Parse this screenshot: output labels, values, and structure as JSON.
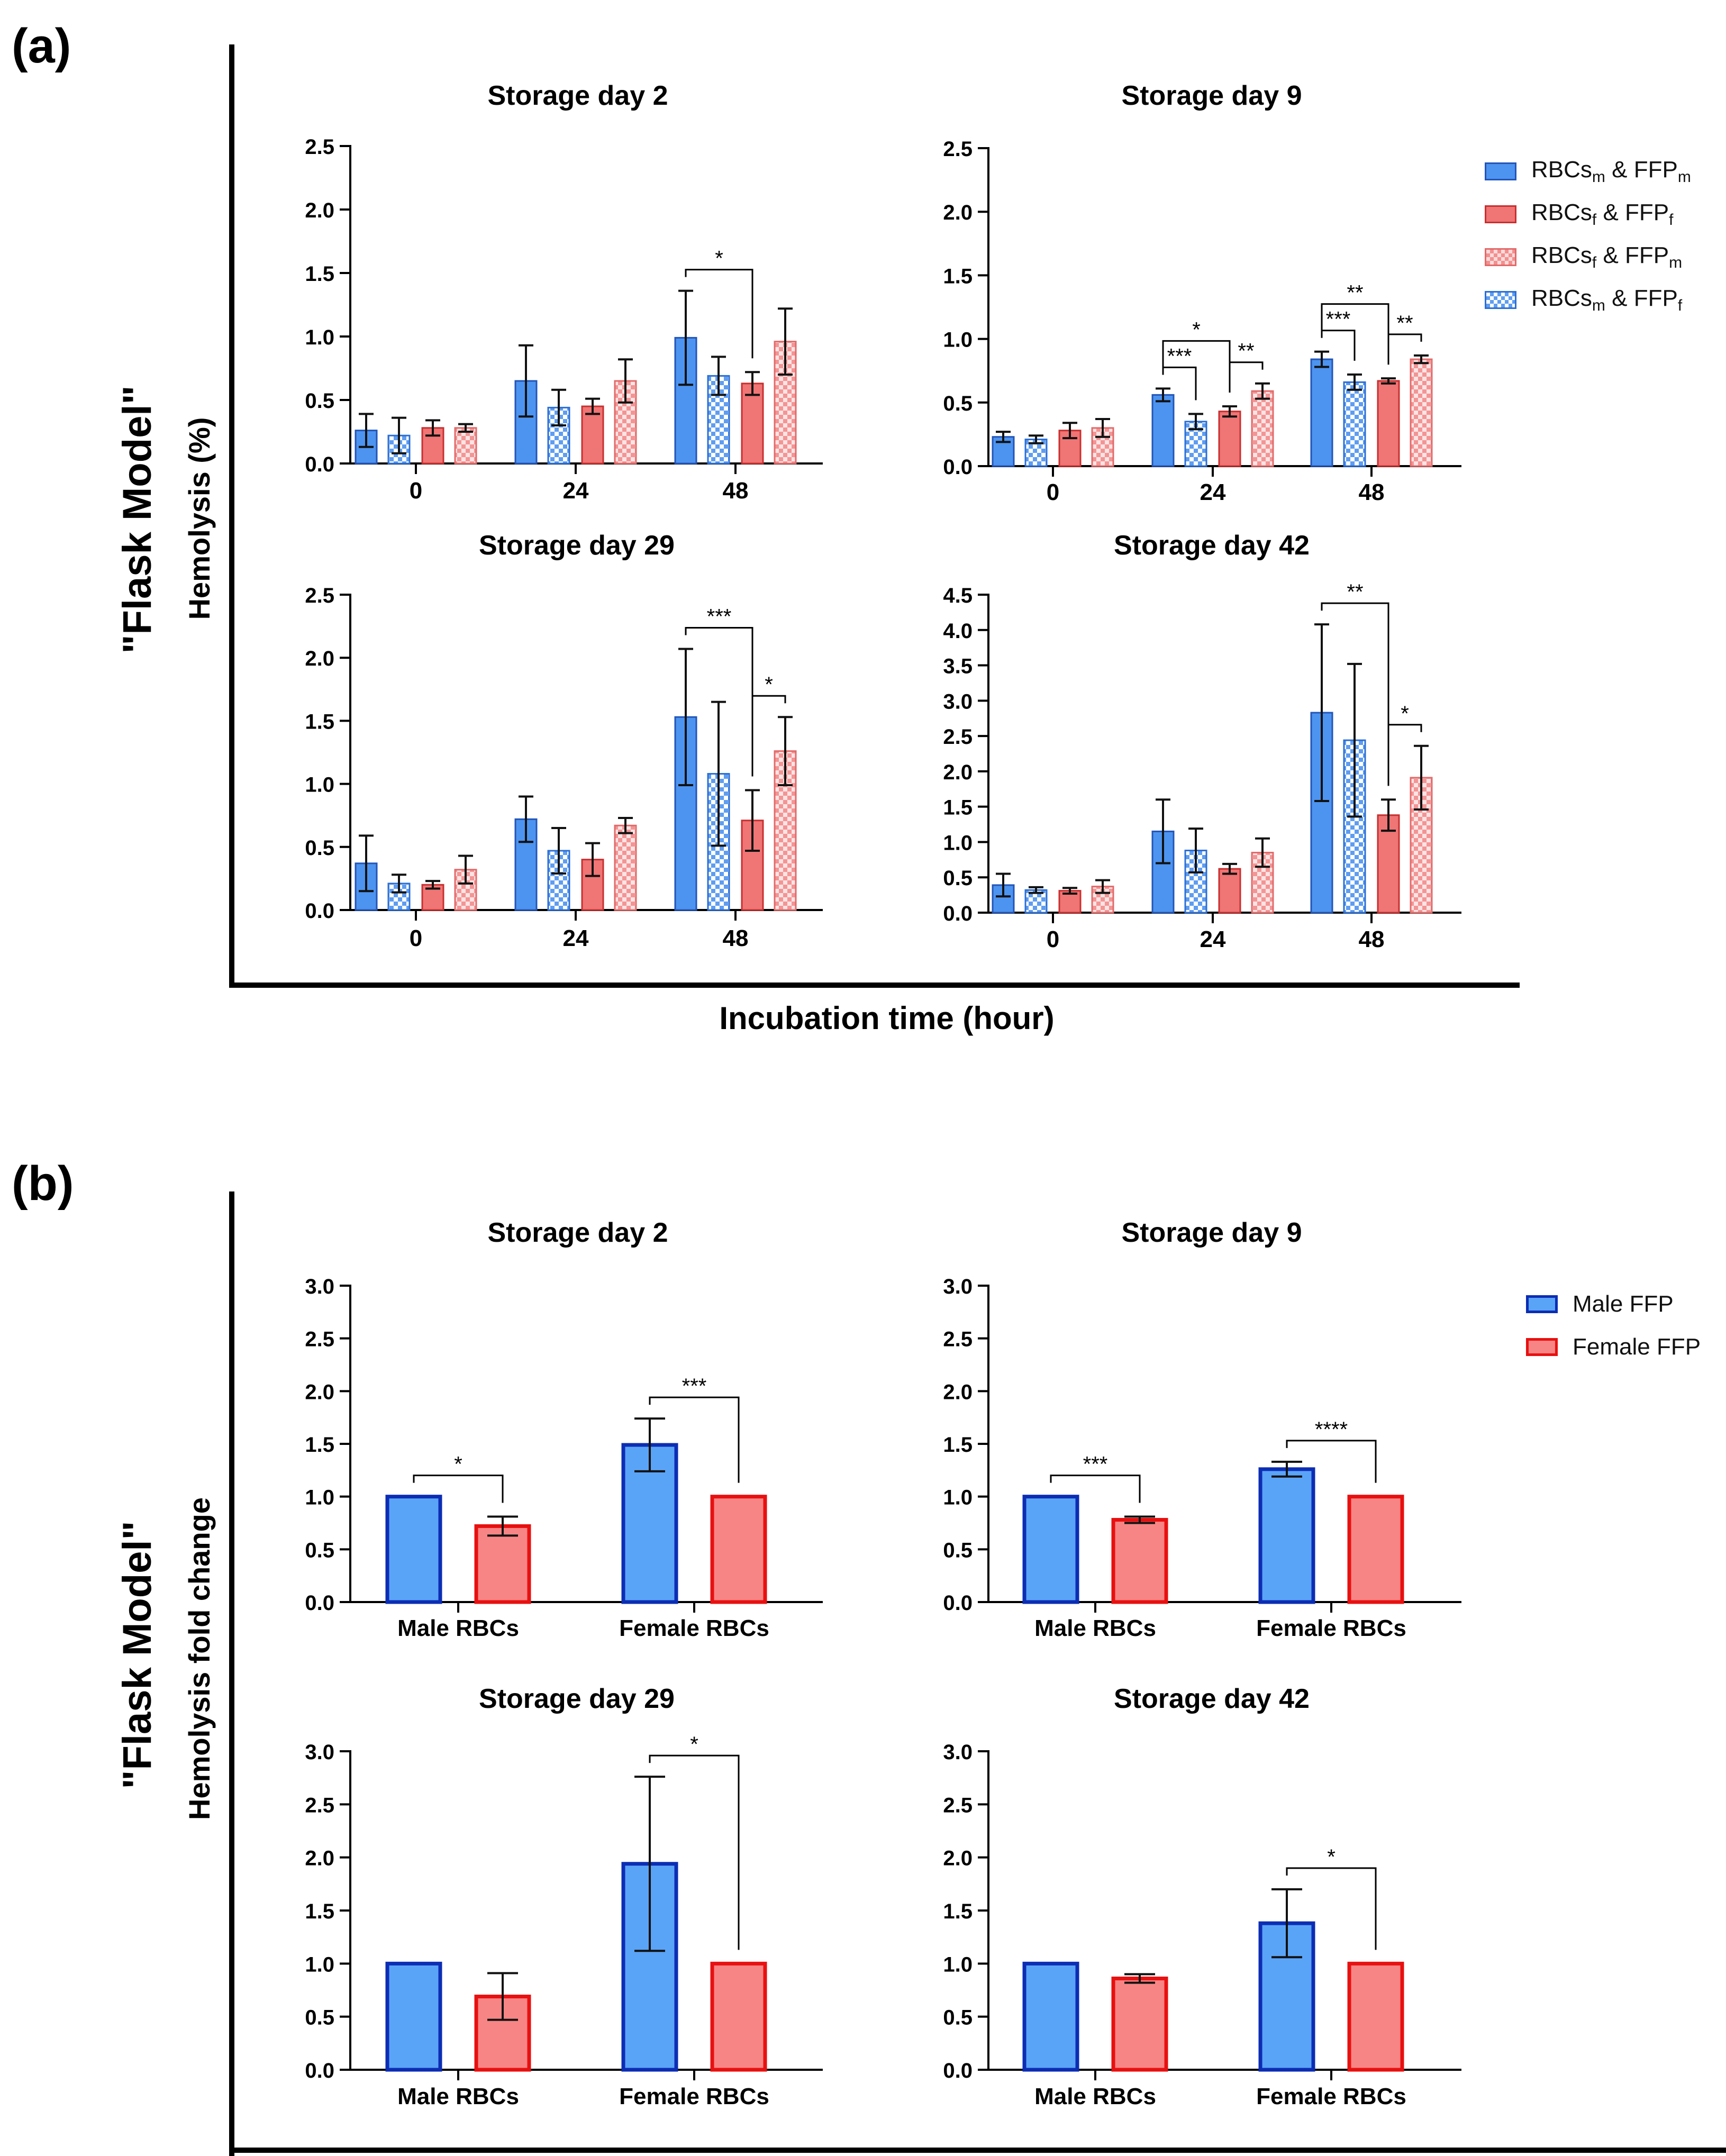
{
  "panel_a": {
    "label": "(a)",
    "model_label": "\"Flask Model\"",
    "y_label": "Hemolysis (%)",
    "x_label": "Incubation time (hour)",
    "legend": [
      {
        "base1": "RBCs",
        "sub1": "m",
        "mid": " & FFP",
        "sub2": "m",
        "style": "solid-blue"
      },
      {
        "base1": "RBCs",
        "sub1": "f",
        "mid": " & FFP",
        "sub2": "f",
        "style": "solid-red"
      },
      {
        "base1": "RBCs",
        "sub1": "f",
        "mid": " & FFP",
        "sub2": "m",
        "style": "check-red"
      },
      {
        "base1": "RBCs",
        "sub1": "m",
        "mid": " & FFP",
        "sub2": "f",
        "style": "check-blue"
      }
    ]
  },
  "panel_b": {
    "label": "(b)",
    "model_label": "\"Flask Model\"",
    "y_label": "Hemolysis fold change",
    "legend": [
      {
        "label": "Male FFP",
        "style": "male"
      },
      {
        "label": "Female FFP",
        "style": "female"
      }
    ]
  },
  "chart_data": [
    {
      "type": "bar",
      "title": "Storage day 2",
      "categories": [
        "0",
        "24",
        "48"
      ],
      "ylim": [
        0,
        2.5
      ],
      "yticks": [
        "0.0",
        "0.5",
        "1.0",
        "1.5",
        "2.0",
        "2.5"
      ],
      "series": [
        {
          "name": "RBCs_m & FFP_m",
          "style": "solid-blue",
          "values": [
            0.26,
            0.65,
            0.99
          ],
          "errors": [
            0.13,
            0.28,
            0.37
          ]
        },
        {
          "name": "RBCs_m & FFP_f",
          "style": "check-blue",
          "values": [
            0.22,
            0.44,
            0.69
          ],
          "errors": [
            0.14,
            0.14,
            0.15
          ]
        },
        {
          "name": "RBCs_f & FFP_f",
          "style": "solid-red",
          "values": [
            0.28,
            0.45,
            0.63
          ],
          "errors": [
            0.06,
            0.06,
            0.09
          ]
        },
        {
          "name": "RBCs_f & FFP_m",
          "style": "check-red",
          "values": [
            0.28,
            0.65,
            0.96
          ],
          "errors": [
            0.03,
            0.17,
            0.26
          ]
        }
      ],
      "significance": [
        {
          "label": "*",
          "from": [
            2,
            0
          ],
          "to": [
            2,
            2
          ]
        }
      ]
    },
    {
      "type": "bar",
      "title": "Storage day 9",
      "categories": [
        "0",
        "24",
        "48"
      ],
      "ylim": [
        0,
        2.5
      ],
      "yticks": [
        "0.0",
        "0.5",
        "1.0",
        "1.5",
        "2.0",
        "2.5"
      ],
      "series": [
        {
          "name": "RBCs_m & FFP_m",
          "style": "solid-blue",
          "values": [
            0.23,
            0.56,
            0.84
          ],
          "errors": [
            0.04,
            0.05,
            0.06
          ]
        },
        {
          "name": "RBCs_m & FFP_f",
          "style": "check-blue",
          "values": [
            0.21,
            0.35,
            0.66
          ],
          "errors": [
            0.03,
            0.06,
            0.06
          ]
        },
        {
          "name": "RBCs_f & FFP_f",
          "style": "solid-red",
          "values": [
            0.28,
            0.43,
            0.67
          ],
          "errors": [
            0.06,
            0.04,
            0.02
          ]
        },
        {
          "name": "RBCs_f & FFP_m",
          "style": "check-red",
          "values": [
            0.3,
            0.59,
            0.84
          ],
          "errors": [
            0.07,
            0.06,
            0.03
          ]
        }
      ],
      "significance": [
        {
          "label": "***",
          "from": [
            1,
            0
          ],
          "to": [
            1,
            1
          ]
        },
        {
          "label": "*",
          "from": [
            1,
            0
          ],
          "to": [
            1,
            2
          ]
        },
        {
          "label": "**",
          "from": [
            1,
            2
          ],
          "to": [
            1,
            3
          ]
        },
        {
          "label": "***",
          "from": [
            2,
            0
          ],
          "to": [
            2,
            1
          ]
        },
        {
          "label": "**",
          "from": [
            2,
            0
          ],
          "to": [
            2,
            2
          ]
        },
        {
          "label": "**",
          "from": [
            2,
            2
          ],
          "to": [
            2,
            3
          ]
        }
      ]
    },
    {
      "type": "bar",
      "title": "Storage day 29",
      "categories": [
        "0",
        "24",
        "48"
      ],
      "ylim": [
        0,
        2.5
      ],
      "yticks": [
        "0.0",
        "0.5",
        "1.0",
        "1.5",
        "2.0",
        "2.5"
      ],
      "series": [
        {
          "name": "RBCs_m & FFP_m",
          "style": "solid-blue",
          "values": [
            0.37,
            0.72,
            1.53
          ],
          "errors": [
            0.22,
            0.18,
            0.54
          ]
        },
        {
          "name": "RBCs_m & FFP_f",
          "style": "check-blue",
          "values": [
            0.21,
            0.47,
            1.08
          ],
          "errors": [
            0.07,
            0.18,
            0.57
          ]
        },
        {
          "name": "RBCs_f & FFP_f",
          "style": "solid-red",
          "values": [
            0.2,
            0.4,
            0.71
          ],
          "errors": [
            0.03,
            0.13,
            0.24
          ]
        },
        {
          "name": "RBCs_f & FFP_m",
          "style": "check-red",
          "values": [
            0.32,
            0.67,
            1.26
          ],
          "errors": [
            0.11,
            0.06,
            0.27
          ]
        }
      ],
      "significance": [
        {
          "label": "***",
          "from": [
            2,
            0
          ],
          "to": [
            2,
            2
          ]
        },
        {
          "label": "*",
          "from": [
            2,
            2
          ],
          "to": [
            2,
            3
          ]
        }
      ]
    },
    {
      "type": "bar",
      "title": "Storage day 42",
      "categories": [
        "0",
        "24",
        "48"
      ],
      "ylim": [
        0,
        4.5
      ],
      "yticks": [
        "0.0",
        "0.5",
        "1.0",
        "1.5",
        "2.0",
        "2.5",
        "3.0",
        "3.5",
        "4.0",
        "4.5"
      ],
      "series": [
        {
          "name": "RBCs_m & FFP_m",
          "style": "solid-blue",
          "values": [
            0.39,
            1.15,
            2.83
          ],
          "errors": [
            0.16,
            0.45,
            1.25
          ]
        },
        {
          "name": "RBCs_m & FFP_f",
          "style": "check-blue",
          "values": [
            0.32,
            0.88,
            2.44
          ],
          "errors": [
            0.04,
            0.31,
            1.08
          ]
        },
        {
          "name": "RBCs_f & FFP_f",
          "style": "solid-red",
          "values": [
            0.31,
            0.62,
            1.38
          ],
          "errors": [
            0.04,
            0.07,
            0.22
          ]
        },
        {
          "name": "RBCs_f & FFP_m",
          "style": "check-red",
          "values": [
            0.37,
            0.85,
            1.91
          ],
          "errors": [
            0.09,
            0.2,
            0.45
          ]
        }
      ],
      "significance": [
        {
          "label": "**",
          "from": [
            2,
            0
          ],
          "to": [
            2,
            2
          ]
        },
        {
          "label": "*",
          "from": [
            2,
            2
          ],
          "to": [
            2,
            3
          ]
        }
      ]
    },
    {
      "type": "bar",
      "title": "Storage day 2",
      "categories": [
        "Male RBCs",
        "Female RBCs"
      ],
      "ylim": [
        0,
        3.0
      ],
      "yticks": [
        "0.0",
        "0.5",
        "1.0",
        "1.5",
        "2.0",
        "2.5",
        "3.0"
      ],
      "series": [
        {
          "name": "Male FFP",
          "style": "male",
          "values": [
            1.0,
            1.49
          ],
          "errors": [
            0,
            0.25
          ]
        },
        {
          "name": "Female FFP",
          "style": "female",
          "values": [
            0.72,
            1.0
          ],
          "errors": [
            0.09,
            0
          ]
        }
      ],
      "significance": [
        {
          "label": "*",
          "from": [
            0,
            0
          ],
          "to": [
            0,
            1
          ]
        },
        {
          "label": "***",
          "from": [
            1,
            0
          ],
          "to": [
            1,
            1
          ]
        }
      ]
    },
    {
      "type": "bar",
      "title": "Storage day 9",
      "categories": [
        "Male RBCs",
        "Female RBCs"
      ],
      "ylim": [
        0,
        3.0
      ],
      "yticks": [
        "0.0",
        "0.5",
        "1.0",
        "1.5",
        "2.0",
        "2.5",
        "3.0"
      ],
      "series": [
        {
          "name": "Male FFP",
          "style": "male",
          "values": [
            1.0,
            1.26
          ],
          "errors": [
            0,
            0.07
          ]
        },
        {
          "name": "Female FFP",
          "style": "female",
          "values": [
            0.78,
            1.0
          ],
          "errors": [
            0.03,
            0
          ]
        }
      ],
      "significance": [
        {
          "label": "***",
          "from": [
            0,
            0
          ],
          "to": [
            0,
            1
          ]
        },
        {
          "label": "****",
          "from": [
            1,
            0
          ],
          "to": [
            1,
            1
          ]
        }
      ]
    },
    {
      "type": "bar",
      "title": "Storage day 29",
      "categories": [
        "Male RBCs",
        "Female RBCs"
      ],
      "ylim": [
        0,
        3.0
      ],
      "yticks": [
        "0.0",
        "0.5",
        "1.0",
        "1.5",
        "2.0",
        "2.5",
        "3.0"
      ],
      "series": [
        {
          "name": "Male FFP",
          "style": "male",
          "values": [
            1.0,
            1.94
          ],
          "errors": [
            0,
            0.82
          ]
        },
        {
          "name": "Female FFP",
          "style": "female",
          "values": [
            0.69,
            1.0
          ],
          "errors": [
            0.22,
            0
          ]
        }
      ],
      "significance": [
        {
          "label": "*",
          "from": [
            1,
            0
          ],
          "to": [
            1,
            1
          ]
        }
      ]
    },
    {
      "type": "bar",
      "title": "Storage day 42",
      "categories": [
        "Male RBCs",
        "Female RBCs"
      ],
      "ylim": [
        0,
        3.0
      ],
      "yticks": [
        "0.0",
        "0.5",
        "1.0",
        "1.5",
        "2.0",
        "2.5",
        "3.0"
      ],
      "series": [
        {
          "name": "Male FFP",
          "style": "male",
          "values": [
            1.0,
            1.38
          ],
          "errors": [
            0,
            0.32
          ]
        },
        {
          "name": "Female FFP",
          "style": "female",
          "values": [
            0.86,
            1.0
          ],
          "errors": [
            0.04,
            0
          ]
        }
      ],
      "significance": [
        {
          "label": "*",
          "from": [
            1,
            0
          ],
          "to": [
            1,
            1
          ]
        }
      ]
    }
  ]
}
